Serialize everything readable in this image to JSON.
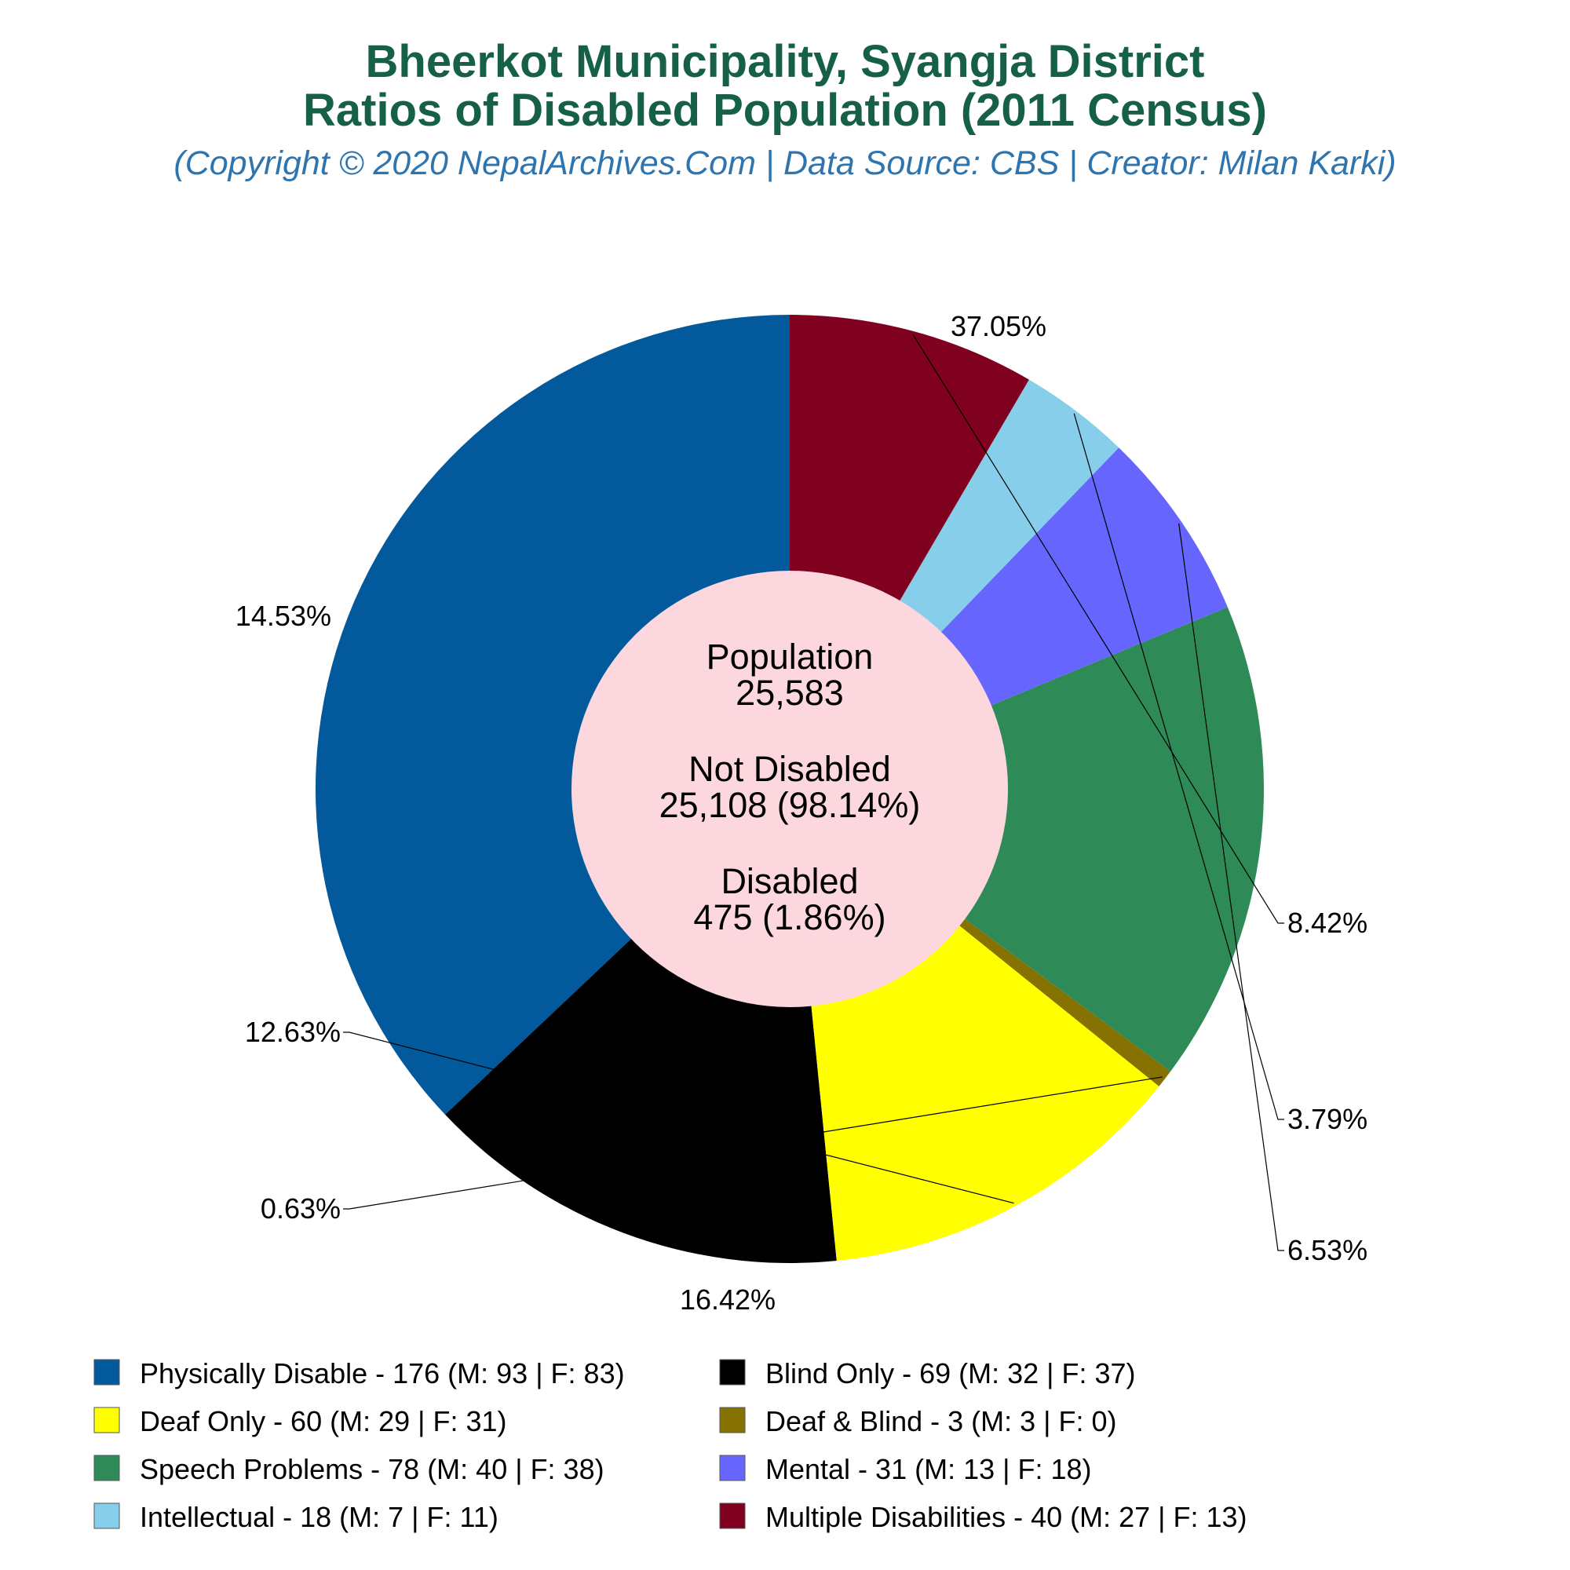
{
  "title_line1": "Bheerkot Municipality, Syangja District",
  "title_line2": "Ratios of Disabled Population (2011 Census)",
  "subtitle": "(Copyright © 2020 NepalArchives.Com | Data Source: CBS | Creator: Milan Karki)",
  "colors": {
    "title": "#16604a",
    "subtitle": "#2e75b0",
    "center_fill": "#fdd7de"
  },
  "center": {
    "population_label": "Population",
    "population_value": "25,583",
    "not_disabled_label": "Not Disabled",
    "not_disabled_value": "25,108 (98.14%)",
    "disabled_label": "Disabled",
    "disabled_value": "475 (1.86%)"
  },
  "chart_data": {
    "type": "pie",
    "donut": true,
    "start_angle_deg": 90,
    "direction": "counterclockwise",
    "categories": [
      "Physically Disable",
      "Blind Only",
      "Deaf Only",
      "Deaf & Blind",
      "Speech Problems",
      "Mental",
      "Intellectual",
      "Multiple Disabilities"
    ],
    "values": [
      176,
      69,
      60,
      3,
      78,
      31,
      18,
      40
    ],
    "percent_labels": [
      "37.05%",
      "14.53%",
      "12.63%",
      "0.63%",
      "16.42%",
      "6.53%",
      "3.79%",
      "8.42%"
    ],
    "colors": [
      "#02599c",
      "#000000",
      "#ffff00",
      "#857200",
      "#2e8b57",
      "#6666ff",
      "#87ceeb",
      "#800020"
    ],
    "legend_labels": [
      "Physically Disable - 176 (M: 93 | F: 83)",
      "Blind Only - 69 (M: 32 | F: 37)",
      "Deaf Only - 60 (M: 29 | F: 31)",
      "Deaf & Blind - 3 (M: 3 | F: 0)",
      "Speech Problems - 78 (M: 40 | F: 38)",
      "Mental - 31 (M: 13 | F: 18)",
      "Intellectual - 18 (M: 7 | F: 11)",
      "Multiple Disabilities - 40 (M: 27 | F: 13)"
    ],
    "legend_position": "bottom"
  }
}
